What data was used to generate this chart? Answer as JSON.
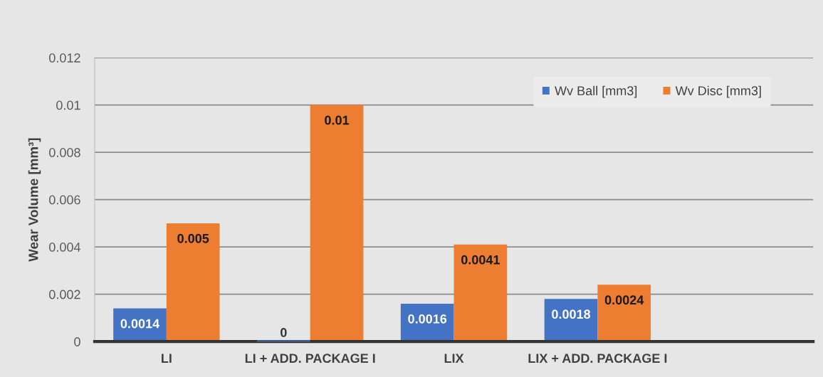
{
  "chart_data": {
    "type": "bar",
    "ylabel": "Wear Volume [mm³]",
    "categories": [
      "LI",
      "LI + ADD. PACKAGE I",
      "LIX",
      "LIX + ADD. PACKAGE I",
      null
    ],
    "series": [
      {
        "name": "Wv Ball [mm3]",
        "color": "#4472c4",
        "values": [
          0.0014,
          0,
          0.0016,
          0.0018,
          null
        ]
      },
      {
        "name": "Wv Disc [mm3]",
        "color": "#ed7d31",
        "values": [
          0.005,
          0.01,
          0.0041,
          0.0024,
          null
        ]
      }
    ],
    "ylim": [
      0,
      0.012
    ],
    "yticks": [
      0,
      0.002,
      0.004,
      0.006,
      0.008,
      0.01,
      0.012
    ],
    "grid": "y",
    "legend": "top right",
    "data_labels": true
  }
}
